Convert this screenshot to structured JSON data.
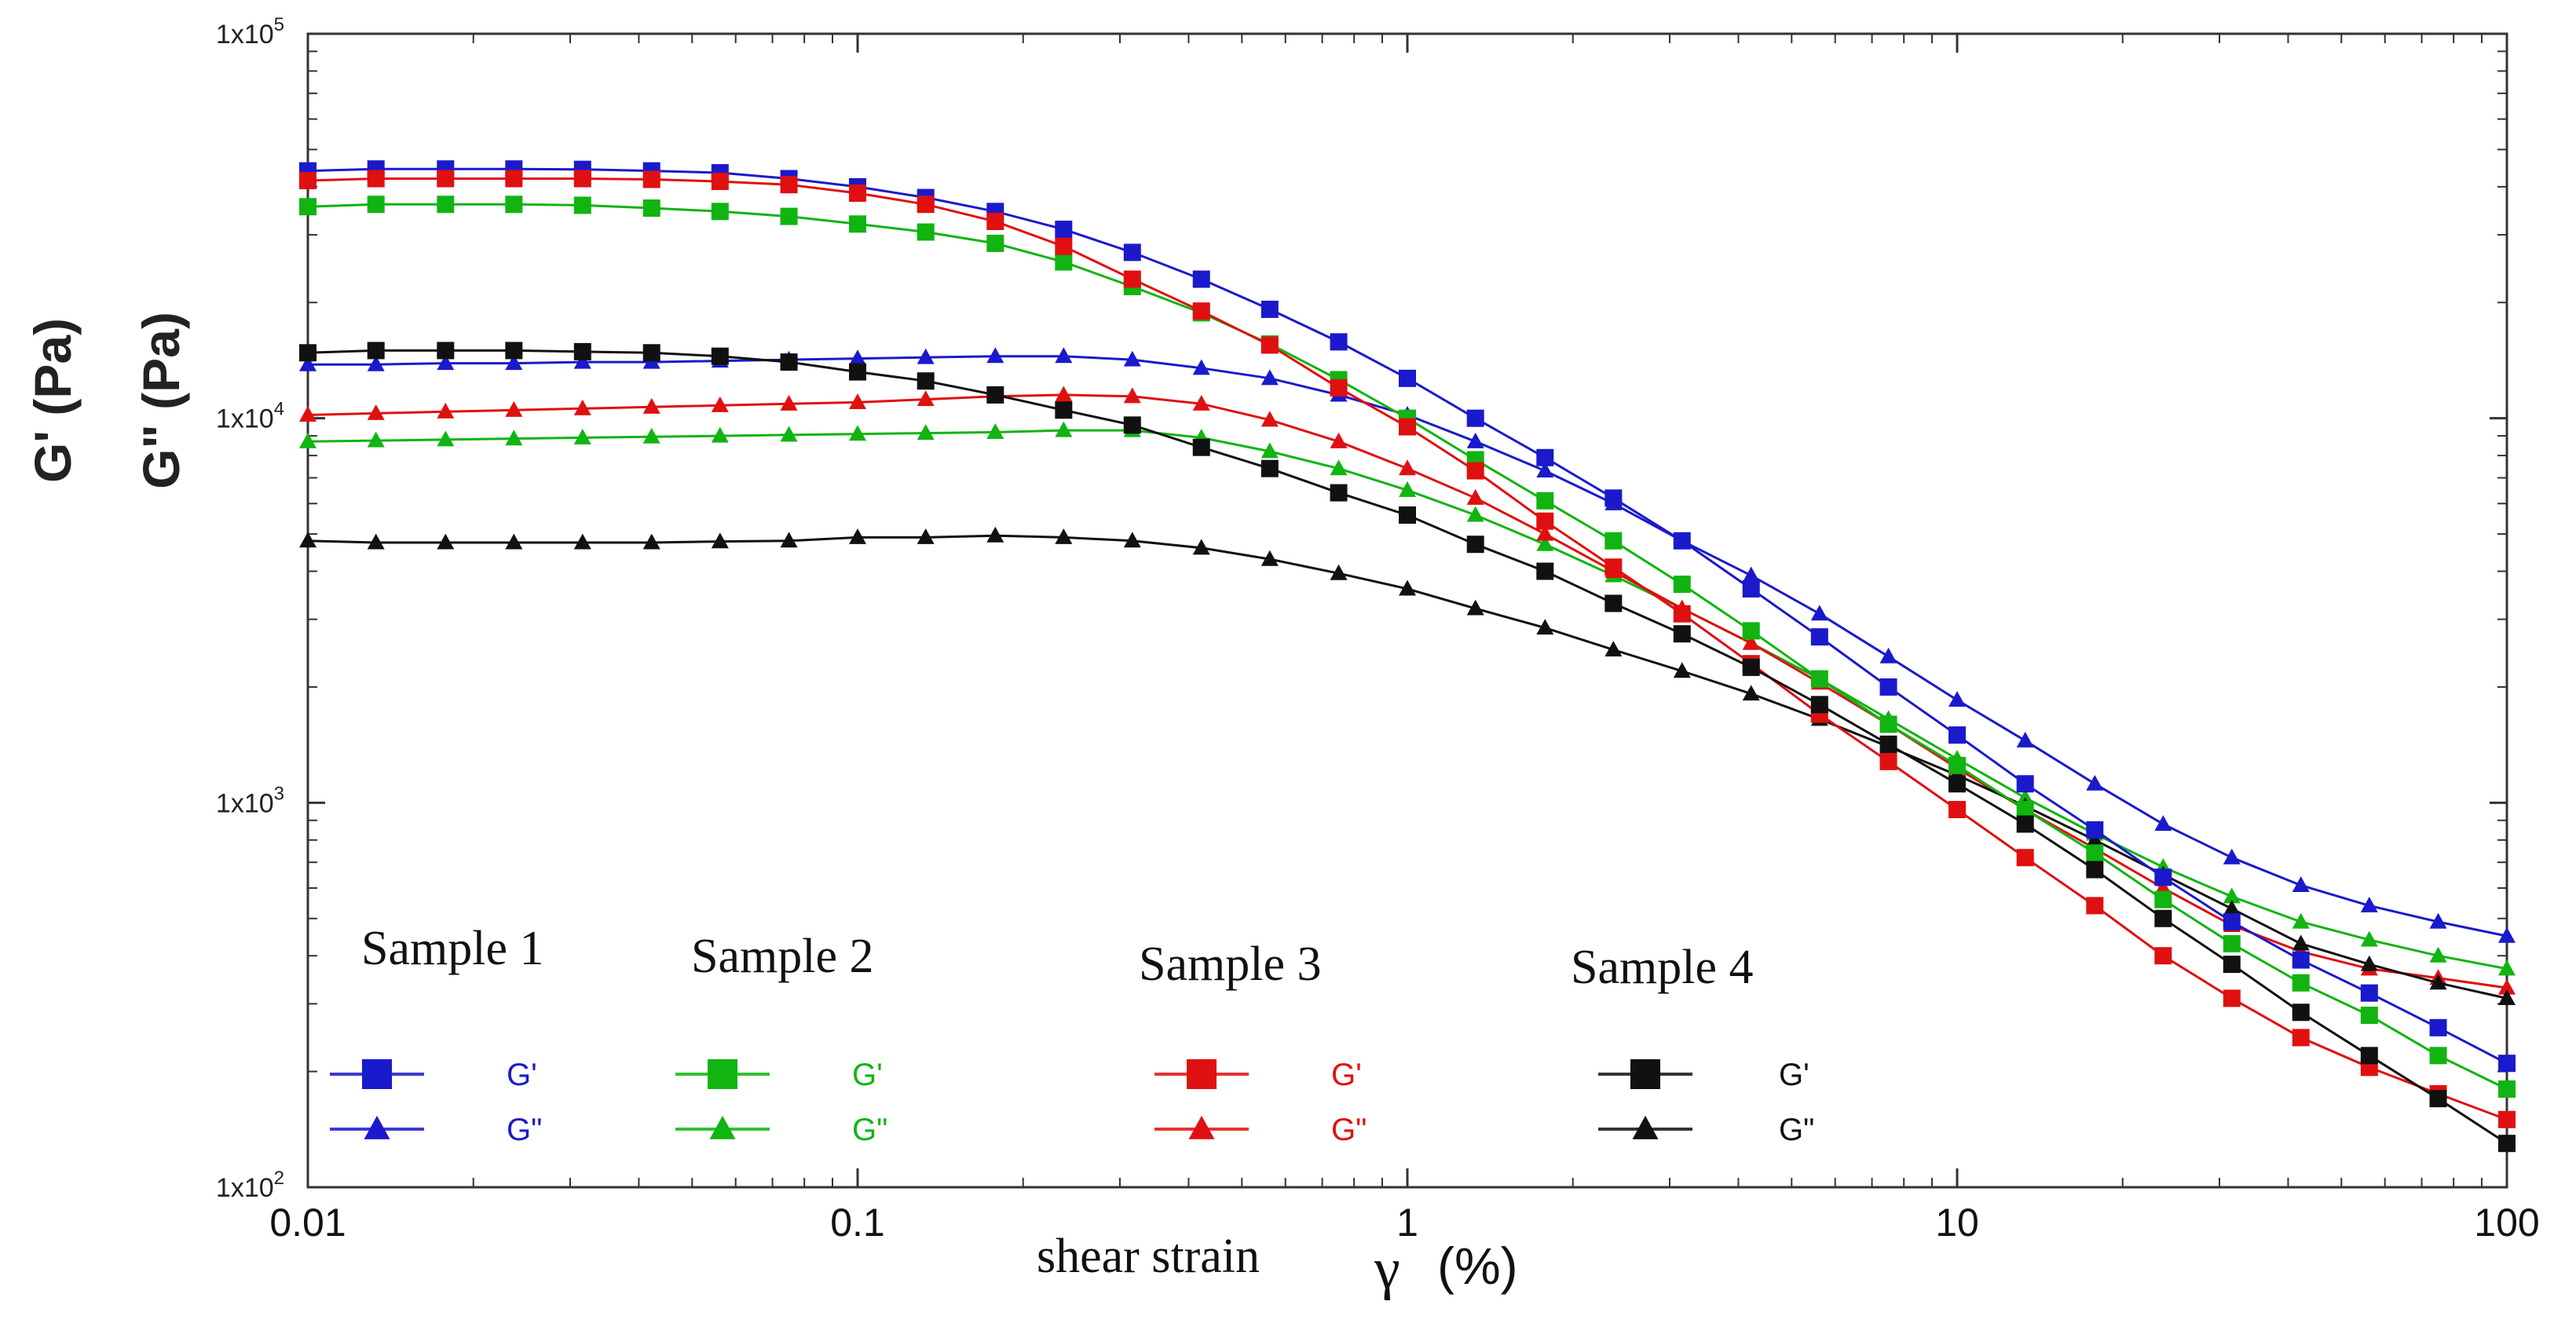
{
  "chart_data": {
    "type": "line",
    "title": "",
    "xscale": "log",
    "yscale": "log",
    "xlim": [
      0.01,
      100
    ],
    "ylim": [
      100,
      100000
    ],
    "x_ticks": [
      0.01,
      0.1,
      1,
      10,
      100
    ],
    "x_tick_labels": [
      "0.01",
      "0.1",
      "1",
      "10",
      "100"
    ],
    "y_ticks": [
      100,
      1000,
      10000,
      100000
    ],
    "y_tick_labels": [
      {
        "base": "1x10",
        "exp": "2"
      },
      {
        "base": "1x10",
        "exp": "3"
      },
      {
        "base": "1x10",
        "exp": "4"
      },
      {
        "base": "1x10",
        "exp": "5"
      }
    ],
    "xlabel": {
      "text": "shear strain",
      "symbol": "γ",
      "unit": "(%)"
    },
    "ylabels": [
      "G' (Pa)",
      "G\" (Pa)"
    ],
    "x": [
      0.01,
      0.0133,
      0.0178,
      0.0237,
      0.0316,
      0.0422,
      0.0562,
      0.075,
      0.1,
      0.133,
      0.178,
      0.237,
      0.316,
      0.422,
      0.562,
      0.75,
      1,
      1.33,
      1.78,
      2.37,
      3.16,
      4.22,
      5.62,
      7.5,
      10,
      13.3,
      17.8,
      23.7,
      31.6,
      42.2,
      56.2,
      75,
      100
    ],
    "series": [
      {
        "sample": "Sample 1",
        "name": "G'",
        "marker": "square",
        "color": "#1a1acc",
        "values": [
          44000,
          44500,
          44500,
          44500,
          44400,
          44000,
          43500,
          42000,
          40000,
          37500,
          34500,
          31000,
          27000,
          23000,
          19200,
          15800,
          12700,
          10000,
          7900,
          6200,
          4800,
          3600,
          2700,
          2000,
          1500,
          1120,
          850,
          640,
          490,
          390,
          320,
          260,
          210
        ]
      },
      {
        "sample": "Sample 1",
        "name": "G\"",
        "marker": "triangle",
        "color": "#1a1acc",
        "values": [
          13800,
          13800,
          13900,
          13900,
          14000,
          14000,
          14100,
          14200,
          14300,
          14400,
          14500,
          14500,
          14200,
          13500,
          12700,
          11500,
          10200,
          8700,
          7300,
          6000,
          4800,
          3900,
          3100,
          2400,
          1850,
          1450,
          1120,
          880,
          720,
          610,
          540,
          490,
          450
        ]
      },
      {
        "sample": "Sample 2",
        "name": "G'",
        "marker": "square",
        "color": "#11b411",
        "values": [
          35500,
          36000,
          36000,
          36000,
          35800,
          35200,
          34500,
          33500,
          32000,
          30500,
          28500,
          25500,
          22000,
          18800,
          15600,
          12600,
          10000,
          7800,
          6100,
          4800,
          3700,
          2800,
          2100,
          1600,
          1250,
          960,
          740,
          560,
          430,
          340,
          280,
          220,
          180
        ]
      },
      {
        "sample": "Sample 2",
        "name": "G\"",
        "marker": "triangle",
        "color": "#11b411",
        "values": [
          8700,
          8750,
          8800,
          8850,
          8900,
          8950,
          9000,
          9050,
          9100,
          9150,
          9200,
          9300,
          9300,
          8900,
          8200,
          7400,
          6500,
          5600,
          4700,
          3900,
          3200,
          2600,
          2100,
          1650,
          1300,
          1030,
          830,
          680,
          570,
          490,
          440,
          400,
          370
        ]
      },
      {
        "sample": "Sample 3",
        "name": "G'",
        "marker": "square",
        "color": "#e01010",
        "values": [
          41500,
          42000,
          42000,
          42000,
          42000,
          41800,
          41300,
          40500,
          38500,
          36000,
          32500,
          28000,
          23000,
          19000,
          15500,
          12000,
          9500,
          7300,
          5400,
          4100,
          3100,
          2300,
          1700,
          1280,
          960,
          720,
          540,
          400,
          310,
          245,
          205,
          175,
          150
        ]
      },
      {
        "sample": "Sample 3",
        "name": "G\"",
        "marker": "triangle",
        "color": "#e01010",
        "values": [
          10200,
          10300,
          10400,
          10500,
          10600,
          10700,
          10800,
          10900,
          11000,
          11200,
          11400,
          11500,
          11400,
          10900,
          9900,
          8700,
          7400,
          6200,
          5000,
          4000,
          3200,
          2600,
          2050,
          1600,
          1230,
          960,
          760,
          600,
          480,
          410,
          370,
          350,
          330
        ]
      },
      {
        "sample": "Sample 4",
        "name": "G'",
        "marker": "square",
        "color": "#111111",
        "values": [
          14800,
          15000,
          15000,
          15000,
          14900,
          14800,
          14500,
          14000,
          13200,
          12500,
          11500,
          10500,
          9600,
          8400,
          7400,
          6400,
          5600,
          4700,
          4000,
          3300,
          2750,
          2250,
          1800,
          1420,
          1120,
          880,
          670,
          500,
          380,
          285,
          220,
          170,
          130
        ]
      },
      {
        "sample": "Sample 4",
        "name": "G\"",
        "marker": "triangle",
        "color": "#111111",
        "values": [
          4800,
          4750,
          4750,
          4750,
          4750,
          4750,
          4780,
          4800,
          4900,
          4900,
          4950,
          4900,
          4800,
          4600,
          4300,
          3950,
          3600,
          3200,
          2850,
          2500,
          2200,
          1920,
          1650,
          1400,
          1180,
          980,
          800,
          650,
          530,
          430,
          380,
          340,
          310
        ]
      }
    ],
    "legend": [
      {
        "title": "Sample 1",
        "color": "#1a1acc",
        "entries": [
          "G'",
          "G\""
        ]
      },
      {
        "title": "Sample 2",
        "color": "#11b411",
        "entries": [
          "G'",
          "G\""
        ]
      },
      {
        "title": "Sample 3",
        "color": "#e01010",
        "entries": [
          "G'",
          "G\""
        ]
      },
      {
        "title": "Sample 4",
        "color": "#111111",
        "entries": [
          "G'",
          "G\""
        ]
      }
    ],
    "legend_position": "bottom-left",
    "grid": false
  }
}
